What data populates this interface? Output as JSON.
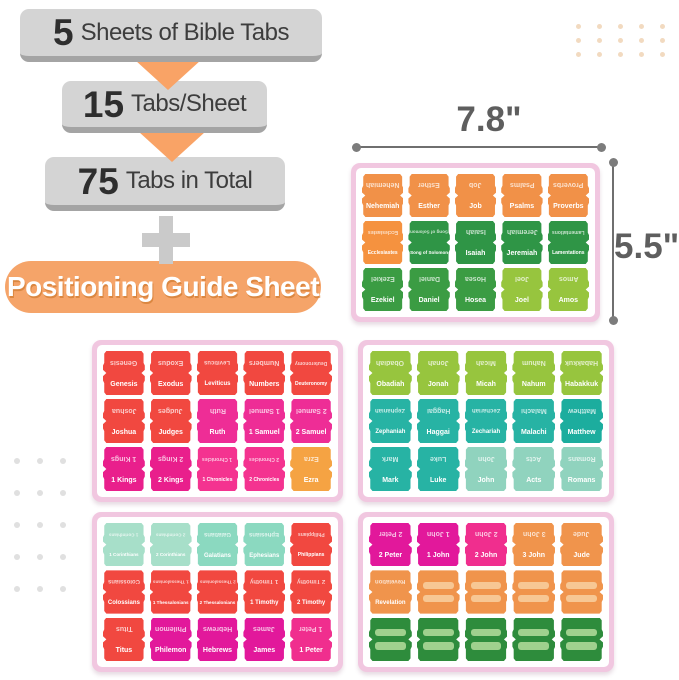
{
  "infographic": {
    "steps": [
      {
        "number": "5",
        "text": "Sheets of Bible Tabs"
      },
      {
        "number": "15",
        "text": "Tabs/Sheet"
      },
      {
        "number": "75",
        "text": "Tabs in Total"
      }
    ],
    "guide_label": "Positioning Guide Sheet"
  },
  "dimensions": {
    "width_label": "7.8\"",
    "height_label": "5.5\""
  },
  "colors": {
    "frame_pink": "#F1C7E0",
    "box_gray": "#D4D4D4",
    "box_gray_dark": "#A4A4A4",
    "arrow_orange": "#F9A366",
    "pill_orange": "#F5A469",
    "plus_gray": "#CACACA",
    "dot_peach": "#F2DAC0",
    "dot_gray": "#E0E0E0"
  },
  "sheets": [
    {
      "name": "sheet-nehemiah-to-amos",
      "rows": [
        [
          {
            "label": "Nehemiah",
            "color": "#F19148"
          },
          {
            "label": "Esther",
            "color": "#F19148"
          },
          {
            "label": "Job",
            "color": "#F19148"
          },
          {
            "label": "Psalms",
            "color": "#F19148"
          },
          {
            "label": "Proverbs",
            "color": "#F19148"
          }
        ],
        [
          {
            "label": "Ecclesiastes",
            "color": "#F5923F"
          },
          {
            "label": "Song of Solomon",
            "color": "#2F9546"
          },
          {
            "label": "Isaiah",
            "color": "#2F9546"
          },
          {
            "label": "Jeremiah",
            "color": "#2F9546"
          },
          {
            "label": "Lamentations",
            "color": "#2F9546"
          }
        ],
        [
          {
            "label": "Ezekiel",
            "color": "#3B9C43"
          },
          {
            "label": "Daniel",
            "color": "#3B9C43"
          },
          {
            "label": "Hosea",
            "color": "#3B9C43"
          },
          {
            "label": "Joel",
            "color": "#97C53E"
          },
          {
            "label": "Amos",
            "color": "#97C53E"
          }
        ]
      ]
    },
    {
      "name": "sheet-genesis-to-ezra",
      "rows": [
        [
          {
            "label": "Genesis",
            "color": "#F14840"
          },
          {
            "label": "Exodus",
            "color": "#F14840"
          },
          {
            "label": "Leviticus",
            "color": "#F14840"
          },
          {
            "label": "Numbers",
            "color": "#F14840"
          },
          {
            "label": "Deuteronomy",
            "color": "#F14840"
          }
        ],
        [
          {
            "label": "Joshua",
            "color": "#F14840"
          },
          {
            "label": "Judges",
            "color": "#F14840"
          },
          {
            "label": "Ruth",
            "color": "#EE2D96"
          },
          {
            "label": "1 Samuel",
            "color": "#EE2D96"
          },
          {
            "label": "2 Samuel",
            "color": "#EE2D96"
          }
        ],
        [
          {
            "label": "1 Kings",
            "color": "#E91F8C"
          },
          {
            "label": "2 Kings",
            "color": "#E91F8C"
          },
          {
            "label": "1 Chronicles",
            "color": "#F43390"
          },
          {
            "label": "2 Chronicles",
            "color": "#F43390"
          },
          {
            "label": "Ezra",
            "color": "#F5A343"
          }
        ]
      ]
    },
    {
      "name": "sheet-obadiah-to-romans",
      "rows": [
        [
          {
            "label": "Obadiah",
            "color": "#97C53E"
          },
          {
            "label": "Jonah",
            "color": "#97C53E"
          },
          {
            "label": "Micah",
            "color": "#97C53E"
          },
          {
            "label": "Nahum",
            "color": "#97C53E"
          },
          {
            "label": "Habakkuk",
            "color": "#97C53E"
          }
        ],
        [
          {
            "label": "Zephaniah",
            "color": "#27B3A4"
          },
          {
            "label": "Haggai",
            "color": "#27B3A4"
          },
          {
            "label": "Zechariah",
            "color": "#27B3A4"
          },
          {
            "label": "Malachi",
            "color": "#27B3A4"
          },
          {
            "label": "Matthew",
            "color": "#1CAD9E"
          }
        ],
        [
          {
            "label": "Mark",
            "color": "#27B3A4"
          },
          {
            "label": "Luke",
            "color": "#27B3A4"
          },
          {
            "label": "John",
            "color": "#90D3BE"
          },
          {
            "label": "Acts",
            "color": "#90D3BE"
          },
          {
            "label": "Romans",
            "color": "#90D3BE"
          }
        ]
      ]
    },
    {
      "name": "sheet-1corinthians-to-1peter",
      "rows": [
        [
          {
            "label": "1 Corinthians",
            "color": "#A7DFC9"
          },
          {
            "label": "2 Corinthians",
            "color": "#A7DFC9"
          },
          {
            "label": "Galatians",
            "color": "#8BD9C0"
          },
          {
            "label": "Ephesians",
            "color": "#8BD9C0"
          },
          {
            "label": "Philippians",
            "color": "#F14840"
          }
        ],
        [
          {
            "label": "Colossians",
            "color": "#F14840"
          },
          {
            "label": "1 Thessalonians",
            "color": "#F14840"
          },
          {
            "label": "2 Thessalonians",
            "color": "#F14840"
          },
          {
            "label": "1 Timothy",
            "color": "#F14840"
          },
          {
            "label": "2 Timothy",
            "color": "#F14840"
          }
        ],
        [
          {
            "label": "Titus",
            "color": "#F14840"
          },
          {
            "label": "Philemon",
            "color": "#E2189B"
          },
          {
            "label": "Hebrews",
            "color": "#E2189B"
          },
          {
            "label": "James",
            "color": "#E2189B"
          },
          {
            "label": "1 Peter",
            "color": "#F02E8E"
          }
        ]
      ]
    },
    {
      "name": "sheet-2peter-to-revelation-and-blanks",
      "rows": [
        [
          {
            "label": "2 Peter",
            "color": "#E2189B"
          },
          {
            "label": "1 John",
            "color": "#E2189B"
          },
          {
            "label": "2 John",
            "color": "#F02E8E"
          },
          {
            "label": "3 John",
            "color": "#F0944C"
          },
          {
            "label": "Jude",
            "color": "#F0944C"
          }
        ],
        [
          {
            "label": "Revelation",
            "color": "#F0944C"
          },
          {
            "label": "",
            "blank": true,
            "color": "#F0944C",
            "bar": "#F7C794"
          },
          {
            "label": "",
            "blank": true,
            "color": "#F0944C",
            "bar": "#F7C794"
          },
          {
            "label": "",
            "blank": true,
            "color": "#F0944C",
            "bar": "#F7C794"
          },
          {
            "label": "",
            "blank": true,
            "color": "#F0944C",
            "bar": "#F7C794"
          }
        ],
        [
          {
            "label": "",
            "blank": true,
            "color": "#2E8C3C",
            "bar": "#A0D18E"
          },
          {
            "label": "",
            "blank": true,
            "color": "#2E8C3C",
            "bar": "#A0D18E"
          },
          {
            "label": "",
            "blank": true,
            "color": "#2E8C3C",
            "bar": "#A0D18E"
          },
          {
            "label": "",
            "blank": true,
            "color": "#2E8C3C",
            "bar": "#A0D18E"
          },
          {
            "label": "",
            "blank": true,
            "color": "#2E8C3C",
            "bar": "#A0D18E"
          }
        ]
      ]
    }
  ],
  "decor": {
    "peach_dots": {
      "cols": 5,
      "rows": 3
    },
    "gray_dots": {
      "cols": 3,
      "rows": 5
    }
  }
}
